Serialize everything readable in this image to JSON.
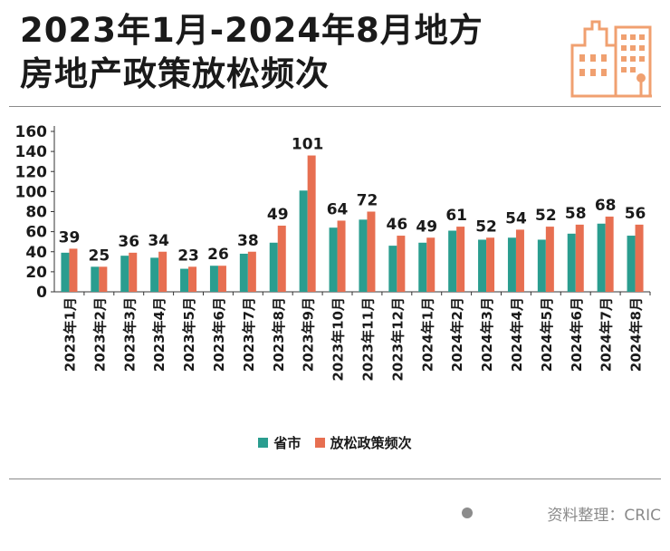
{
  "title_line1": "2023年1月-2024年8月地方",
  "title_line2": "房地产政策放松频次",
  "source": "资料整理：CRIC",
  "colors": {
    "series1": "#2a9d8f",
    "series2": "#e76f51",
    "logo": "#f0a070"
  },
  "chart_data": {
    "type": "bar",
    "categories": [
      "2023年1月",
      "2023年2月",
      "2023年3月",
      "2023年4月",
      "2023年5月",
      "2023年6月",
      "2023年7月",
      "2023年8月",
      "2023年9月",
      "2023年10月",
      "2023年11月",
      "2023年12月",
      "2024年1月",
      "2024年2月",
      "2024年3月",
      "2024年4月",
      "2024年5月",
      "2024年6月",
      "2024年7月",
      "2024年8月"
    ],
    "series": [
      {
        "name": "省市",
        "values": [
          39,
          25,
          36,
          34,
          23,
          26,
          38,
          49,
          101,
          64,
          72,
          46,
          49,
          61,
          52,
          54,
          52,
          58,
          68,
          56
        ],
        "labeled": true
      },
      {
        "name": "放松政策频次",
        "values": [
          43,
          25,
          39,
          40,
          25,
          26,
          40,
          66,
          136,
          71,
          80,
          56,
          54,
          65,
          54,
          62,
          65,
          67,
          75,
          67
        ],
        "labeled": false
      }
    ],
    "yticks": [
      0,
      20,
      40,
      60,
      80,
      100,
      120,
      140,
      160
    ],
    "ylim": [
      0,
      160
    ],
    "legend_position": "bottom"
  }
}
